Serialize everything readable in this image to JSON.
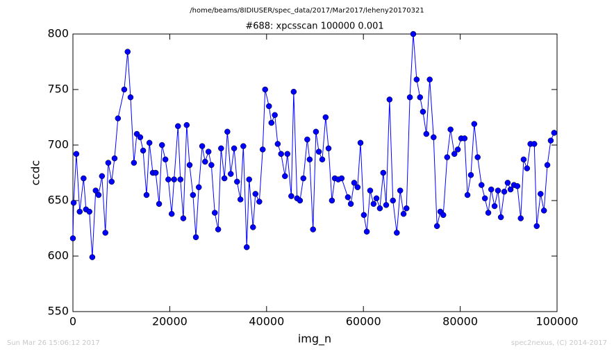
{
  "chart_data": {
    "type": "line",
    "header": "/home/beams/8IDIUSER/spec_data/2017/Mar2017/leheny20170321",
    "title": "#688: xpcsscan 100000 0.001",
    "xlabel": "img_n",
    "ylabel": "ccdc",
    "footer_left": "Sun Mar 26 15:06:12 2017",
    "footer_right": "spec2nexus, (C) 2014-2017",
    "x": [
      0,
      150,
      700,
      1400,
      2200,
      2700,
      3400,
      4000,
      4700,
      5300,
      6000,
      6700,
      7300,
      8000,
      8600,
      9300,
      10600,
      11300,
      11900,
      12600,
      13200,
      13900,
      14500,
      15200,
      15800,
      16500,
      17100,
      17800,
      18400,
      19100,
      19700,
      20400,
      20900,
      21700,
      22200,
      22800,
      23500,
      24100,
      24800,
      25400,
      26000,
      26700,
      27300,
      28000,
      28600,
      29300,
      30000,
      30600,
      31300,
      31900,
      32600,
      33300,
      33900,
      34600,
      35200,
      35900,
      36400,
      37200,
      37700,
      38500,
      39200,
      39700,
      40500,
      41000,
      41700,
      42300,
      43000,
      43800,
      44300,
      45100,
      45600,
      46300,
      46900,
      47600,
      48400,
      48900,
      49600,
      50200,
      50800,
      51500,
      52200,
      52800,
      53500,
      54100,
      54800,
      55500,
      56800,
      57400,
      58100,
      58800,
      59400,
      60100,
      60700,
      61400,
      62100,
      62700,
      63400,
      64100,
      64700,
      65400,
      66100,
      66900,
      67600,
      68300,
      68900,
      69600,
      70300,
      71000,
      71700,
      72300,
      73000,
      73700,
      74500,
      75200,
      75900,
      76500,
      77300,
      78000,
      78800,
      79500,
      80200,
      80900,
      81500,
      82200,
      82900,
      83600,
      84400,
      85100,
      85800,
      86400,
      87100,
      87800,
      88400,
      89100,
      89800,
      90400,
      91100,
      91800,
      92500,
      93100,
      93800,
      94500,
      95300,
      95800,
      96600,
      97300,
      98000,
      98700,
      99400
    ],
    "series": [
      {
        "color": "#0000ff",
        "values": [
          616,
          648,
          692,
          640,
          670,
          642,
          640,
          599,
          659,
          655,
          672,
          621,
          684,
          667,
          688,
          724,
          750,
          784,
          743,
          684,
          710,
          707,
          695,
          655,
          702,
          675,
          675,
          647,
          700,
          687,
          669,
          638,
          669,
          717,
          669,
          634,
          718,
          682,
          655,
          617,
          662,
          699,
          685,
          694,
          682,
          639,
          624,
          697,
          670,
          712,
          674,
          697,
          667,
          651,
          699,
          608,
          669,
          626,
          656,
          649,
          696,
          750,
          735,
          720,
          727,
          701,
          692,
          672,
          692,
          654,
          748,
          652,
          650,
          670,
          705,
          687,
          624,
          712,
          694,
          687,
          725,
          697,
          650,
          670,
          669,
          670,
          653,
          647,
          666,
          662,
          702,
          637,
          622,
          659,
          647,
          652,
          643,
          675,
          646,
          741,
          650,
          621,
          659,
          638,
          643,
          743,
          800,
          759,
          743,
          730,
          710,
          759,
          707,
          627,
          640,
          637,
          689,
          714,
          692,
          696,
          706,
          706,
          655,
          673,
          719,
          689,
          664,
          652,
          639,
          660,
          645,
          659,
          635,
          658,
          666,
          660,
          664,
          663,
          634,
          687,
          679,
          701,
          701,
          627,
          656,
          641,
          682,
          704,
          711
        ]
      }
    ],
    "xlim": [
      0,
      100000
    ],
    "ylim": [
      550,
      800
    ],
    "xticks": [
      0,
      20000,
      40000,
      60000,
      80000,
      100000
    ],
    "yticks": [
      550,
      600,
      650,
      700,
      750,
      800
    ]
  }
}
